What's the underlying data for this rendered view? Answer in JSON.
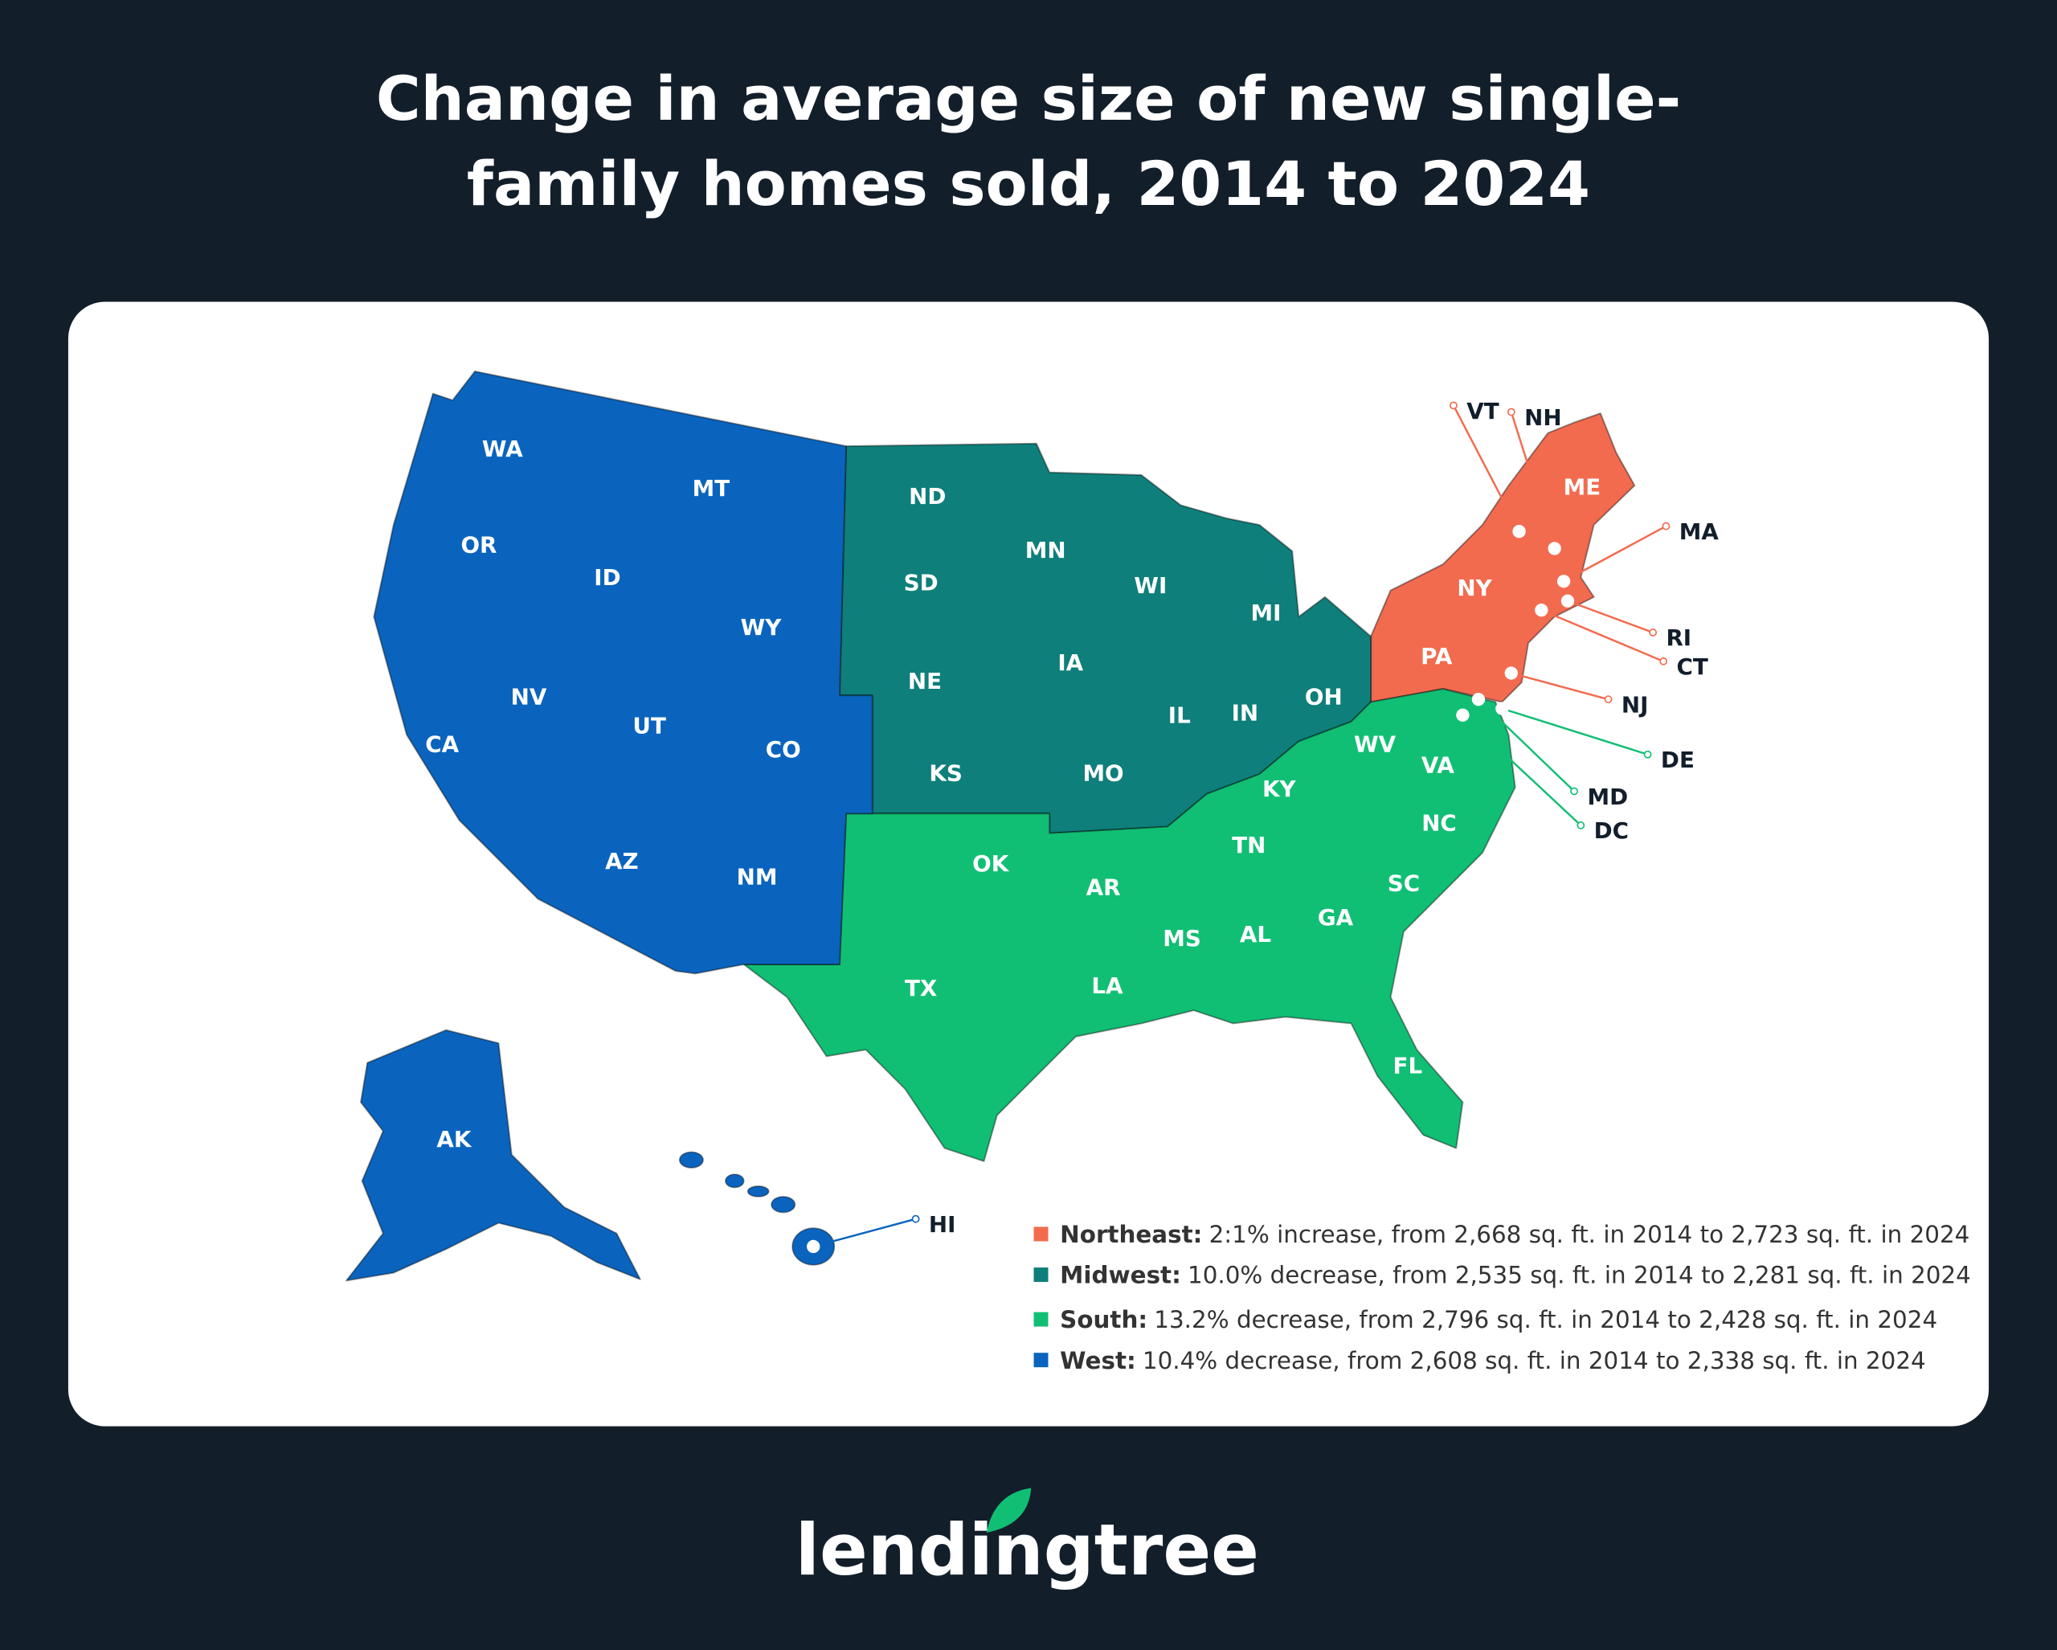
{
  "title": "Change in average size of new single-family homes sold, 2014 to 2024",
  "regions": [
    {
      "label": "Northeast:",
      "color": "#f26b4f",
      "description": "2:1% increase, from 2,668 sq. ft. in 2014 to 2,723 sq. ft. in 2024",
      "states": [
        "ME",
        "NY",
        "PA",
        "VT",
        "NH",
        "MA",
        "RI",
        "CT",
        "NJ"
      ]
    },
    {
      "label": "Midwest:",
      "color": "#0e7f7a",
      "description": "10.0% decrease, from 2,535 sq. ft. in 2014 to 2,281 sq. ft. in 2024",
      "states": [
        "ND",
        "MN",
        "SD",
        "WI",
        "MI",
        "IA",
        "NE",
        "IL",
        "IN",
        "OH",
        "KS",
        "MO"
      ]
    },
    {
      "label": "South:",
      "color": "#11bf74",
      "description": "13.2% decrease, from 2,796 sq. ft. in 2014 to 2,428 sq. ft. in 2024",
      "states": [
        "WV",
        "VA",
        "KY",
        "NC",
        "TN",
        "OK",
        "AR",
        "SC",
        "GA",
        "MS",
        "AL",
        "LA",
        "TX",
        "FL",
        "DE",
        "MD",
        "DC"
      ]
    },
    {
      "label": "West:",
      "color": "#0a64be",
      "description": "10.4% decrease, from 2,608 sq. ft. in 2014 to 2,338 sq. ft. in 2024",
      "states": [
        "WA",
        "MT",
        "OR",
        "ID",
        "WY",
        "NV",
        "UT",
        "CA",
        "CO",
        "AZ",
        "NM",
        "AK",
        "HI"
      ]
    }
  ],
  "brand": "lendingtree"
}
